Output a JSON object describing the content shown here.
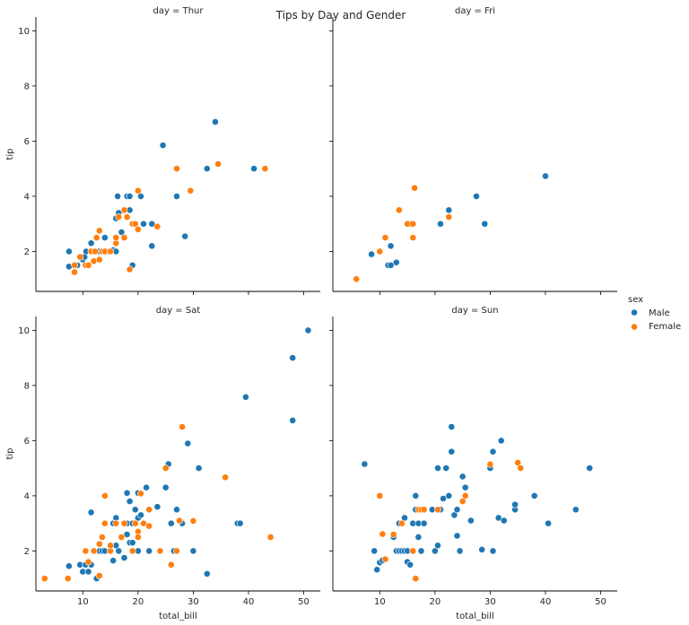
{
  "chart_data": {
    "type": "scatter",
    "title": "Tips by Day and Gender",
    "xlabel": "total_bill",
    "ylabel": "tip",
    "xlim": [
      1.5,
      53
    ],
    "ylim": [
      0.55,
      10.5
    ],
    "xticks": [
      10,
      20,
      30,
      40,
      50
    ],
    "yticks": [
      2,
      4,
      6,
      8,
      10
    ],
    "legend": {
      "title": "sex",
      "placement": "right",
      "entries": [
        {
          "name": "Male",
          "color": "#1f77b4"
        },
        {
          "name": "Female",
          "color": "#ff7f0e"
        }
      ]
    },
    "panels": [
      {
        "title": "day = Thur",
        "series": [
          {
            "name": "Male",
            "points": [
              [
                7.5,
                2.0
              ],
              [
                7.5,
                1.45
              ],
              [
                9.0,
                1.5
              ],
              [
                10.0,
                1.7
              ],
              [
                10.3,
                1.8
              ],
              [
                10.6,
                2.0
              ],
              [
                11.5,
                2.3
              ],
              [
                12.0,
                2.0
              ],
              [
                13.0,
                2.0
              ],
              [
                13.5,
                2.0
              ],
              [
                14.0,
                2.5
              ],
              [
                14.5,
                2.0
              ],
              [
                15.0,
                2.0
              ],
              [
                15.5,
                2.05
              ],
              [
                16.0,
                2.0
              ],
              [
                16.0,
                3.2
              ],
              [
                16.5,
                3.4
              ],
              [
                16.3,
                4.0
              ],
              [
                17.0,
                2.7
              ],
              [
                18.0,
                4.0
              ],
              [
                18.5,
                3.5
              ],
              [
                18.5,
                4.0
              ],
              [
                19.0,
                1.5
              ],
              [
                19.5,
                3.0
              ],
              [
                20.5,
                4.0
              ],
              [
                21.0,
                3.0
              ],
              [
                22.5,
                2.2
              ],
              [
                22.5,
                3.0
              ],
              [
                24.5,
                5.85
              ],
              [
                27.0,
                4.0
              ],
              [
                28.5,
                2.55
              ],
              [
                32.5,
                5.0
              ],
              [
                34.0,
                6.7
              ],
              [
                41.0,
                5.0
              ]
            ]
          },
          {
            "name": "Female",
            "points": [
              [
                8.5,
                1.5
              ],
              [
                8.5,
                1.25
              ],
              [
                9.5,
                1.8
              ],
              [
                10.5,
                1.5
              ],
              [
                11.0,
                1.5
              ],
              [
                11.5,
                2.0
              ],
              [
                12.0,
                1.65
              ],
              [
                12.2,
                2.0
              ],
              [
                12.5,
                2.5
              ],
              [
                13.0,
                1.7
              ],
              [
                13.0,
                2.75
              ],
              [
                13.5,
                2.0
              ],
              [
                14.0,
                2.0
              ],
              [
                15.0,
                2.0
              ],
              [
                16.0,
                2.3
              ],
              [
                16.0,
                2.5
              ],
              [
                16.5,
                3.25
              ],
              [
                17.5,
                2.5
              ],
              [
                17.5,
                3.5
              ],
              [
                18.0,
                3.25
              ],
              [
                18.5,
                1.35
              ],
              [
                19.0,
                3.0
              ],
              [
                19.5,
                3.0
              ],
              [
                20.0,
                2.8
              ],
              [
                20.0,
                4.2
              ],
              [
                23.5,
                2.9
              ],
              [
                27.0,
                5.0
              ],
              [
                29.5,
                4.2
              ],
              [
                34.5,
                5.17
              ],
              [
                43.0,
                5.0
              ]
            ]
          }
        ]
      },
      {
        "title": "day = Fri",
        "series": [
          {
            "name": "Male",
            "points": [
              [
                8.5,
                1.9
              ],
              [
                11.5,
                1.5
              ],
              [
                12.0,
                2.2
              ],
              [
                12.0,
                1.5
              ],
              [
                13.0,
                1.6
              ],
              [
                15.5,
                3.0
              ],
              [
                21.0,
                3.0
              ],
              [
                22.5,
                3.5
              ],
              [
                27.5,
                4.0
              ],
              [
                29.0,
                3.0
              ],
              [
                40.0,
                4.73
              ]
            ]
          },
          {
            "name": "Female",
            "points": [
              [
                5.75,
                1.0
              ],
              [
                10.0,
                2.0
              ],
              [
                11.0,
                2.5
              ],
              [
                13.5,
                3.5
              ],
              [
                15.0,
                3.0
              ],
              [
                16.0,
                3.0
              ],
              [
                16.0,
                2.5
              ],
              [
                16.3,
                4.3
              ],
              [
                22.5,
                3.25
              ]
            ]
          }
        ]
      },
      {
        "title": "day = Sat",
        "series": [
          {
            "name": "Male",
            "points": [
              [
                7.5,
                1.45
              ],
              [
                9.5,
                1.5
              ],
              [
                10.0,
                1.25
              ],
              [
                10.5,
                2.0
              ],
              [
                10.5,
                1.5
              ],
              [
                11.0,
                1.25
              ],
              [
                11.5,
                1.5
              ],
              [
                11.5,
                3.4
              ],
              [
                12.0,
                2.0
              ],
              [
                12.5,
                1.0
              ],
              [
                13.0,
                2.0
              ],
              [
                13.5,
                2.0
              ],
              [
                14.0,
                3.0
              ],
              [
                14.0,
                2.0
              ],
              [
                15.0,
                2.0
              ],
              [
                15.5,
                3.0
              ],
              [
                15.5,
                1.65
              ],
              [
                16.0,
                3.2
              ],
              [
                16.0,
                2.2
              ],
              [
                16.5,
                2.0
              ],
              [
                17.0,
                2.5
              ],
              [
                17.5,
                3.0
              ],
              [
                17.5,
                1.75
              ],
              [
                18.0,
                4.1
              ],
              [
                18.0,
                3.0
              ],
              [
                18.0,
                2.6
              ],
              [
                18.5,
                3.8
              ],
              [
                18.5,
                2.3
              ],
              [
                19.0,
                3.0
              ],
              [
                19.0,
                2.3
              ],
              [
                19.5,
                3.5
              ],
              [
                20.0,
                4.1
              ],
              [
                20.0,
                3.2
              ],
              [
                20.0,
                2.0
              ],
              [
                20.5,
                3.3
              ],
              [
                21.0,
                3.0
              ],
              [
                21.5,
                4.3
              ],
              [
                22.0,
                2.0
              ],
              [
                23.5,
                3.6
              ],
              [
                24.0,
                2.0
              ],
              [
                25.0,
                4.3
              ],
              [
                25.5,
                5.15
              ],
              [
                26.0,
                3.0
              ],
              [
                26.5,
                2.0
              ],
              [
                27.0,
                3.5
              ],
              [
                28.0,
                3.0
              ],
              [
                29.0,
                5.9
              ],
              [
                30.0,
                2.0
              ],
              [
                31.0,
                5.0
              ],
              [
                32.5,
                1.17
              ],
              [
                38.0,
                3.0
              ],
              [
                38.5,
                3.0
              ],
              [
                39.5,
                7.58
              ],
              [
                48.0,
                9.0
              ],
              [
                48.0,
                6.73
              ],
              [
                50.8,
                10.0
              ]
            ]
          },
          {
            "name": "Female",
            "points": [
              [
                3.1,
                1.0
              ],
              [
                7.3,
                1.0
              ],
              [
                10.5,
                2.0
              ],
              [
                11.0,
                1.6
              ],
              [
                12.0,
                2.0
              ],
              [
                13.0,
                2.25
              ],
              [
                13.0,
                1.1
              ],
              [
                13.5,
                2.5
              ],
              [
                14.0,
                3.0
              ],
              [
                14.0,
                4.0
              ],
              [
                15.0,
                2.0
              ],
              [
                15.0,
                2.2
              ],
              [
                16.0,
                3.0
              ],
              [
                17.0,
                2.5
              ],
              [
                17.5,
                3.0
              ],
              [
                19.0,
                2.0
              ],
              [
                19.5,
                3.0
              ],
              [
                20.0,
                2.7
              ],
              [
                20.0,
                2.5
              ],
              [
                20.5,
                4.08
              ],
              [
                21.0,
                3.0
              ],
              [
                22.0,
                2.9
              ],
              [
                22.0,
                3.5
              ],
              [
                24.0,
                2.0
              ],
              [
                25.0,
                5.0
              ],
              [
                26.0,
                1.5
              ],
              [
                27.0,
                2.0
              ],
              [
                27.5,
                3.1
              ],
              [
                28.0,
                6.5
              ],
              [
                30.0,
                3.09
              ],
              [
                35.8,
                4.67
              ],
              [
                44.0,
                2.5
              ]
            ]
          }
        ]
      },
      {
        "title": "day = Sun",
        "series": [
          {
            "name": "Male",
            "points": [
              [
                7.25,
                5.15
              ],
              [
                9.0,
                2.0
              ],
              [
                9.5,
                1.32
              ],
              [
                10.0,
                1.58
              ],
              [
                10.5,
                1.66
              ],
              [
                12.5,
                2.5
              ],
              [
                13.0,
                2.0
              ],
              [
                13.5,
                3.0
              ],
              [
                13.5,
                2.0
              ],
              [
                14.0,
                2.0
              ],
              [
                14.5,
                3.2
              ],
              [
                14.5,
                2.0
              ],
              [
                15.0,
                2.0
              ],
              [
                15.0,
                1.6
              ],
              [
                15.5,
                1.5
              ],
              [
                16.0,
                2.0
              ],
              [
                16.0,
                3.0
              ],
              [
                16.5,
                4.0
              ],
              [
                16.5,
                3.5
              ],
              [
                17.0,
                3.0
              ],
              [
                17.0,
                2.5
              ],
              [
                17.5,
                2.0
              ],
              [
                18.0,
                3.0
              ],
              [
                19.5,
                3.5
              ],
              [
                20.0,
                2.0
              ],
              [
                20.5,
                2.2
              ],
              [
                20.5,
                5.0
              ],
              [
                21.0,
                3.5
              ],
              [
                21.5,
                3.9
              ],
              [
                22.0,
                5.0
              ],
              [
                22.5,
                4.0
              ],
              [
                23.0,
                6.5
              ],
              [
                23.0,
                5.6
              ],
              [
                23.5,
                3.3
              ],
              [
                24.0,
                2.55
              ],
              [
                24.0,
                3.5
              ],
              [
                24.5,
                2.0
              ],
              [
                25.0,
                4.7
              ],
              [
                25.5,
                4.3
              ],
              [
                26.5,
                3.1
              ],
              [
                28.5,
                2.05
              ],
              [
                30.0,
                5.0
              ],
              [
                30.5,
                5.6
              ],
              [
                30.5,
                2.0
              ],
              [
                31.5,
                3.2
              ],
              [
                32.0,
                6.0
              ],
              [
                32.5,
                3.1
              ],
              [
                34.5,
                3.5
              ],
              [
                34.5,
                3.68
              ],
              [
                38.0,
                4.0
              ],
              [
                40.5,
                3.0
              ],
              [
                45.5,
                3.5
              ],
              [
                48.0,
                5.0
              ]
            ]
          },
          {
            "name": "Female",
            "points": [
              [
                10.0,
                4.0
              ],
              [
                10.5,
                2.61
              ],
              [
                11.0,
                1.7
              ],
              [
                12.5,
                2.6
              ],
              [
                14.0,
                3.0
              ],
              [
                16.0,
                2.0
              ],
              [
                16.5,
                1.0
              ],
              [
                17.0,
                3.5
              ],
              [
                17.5,
                3.5
              ],
              [
                18.0,
                3.5
              ],
              [
                20.5,
                3.5
              ],
              [
                25.0,
                3.8
              ],
              [
                25.5,
                4.0
              ],
              [
                30.0,
                5.14
              ],
              [
                35.0,
                5.2
              ],
              [
                35.5,
                5.0
              ]
            ]
          }
        ]
      }
    ]
  }
}
